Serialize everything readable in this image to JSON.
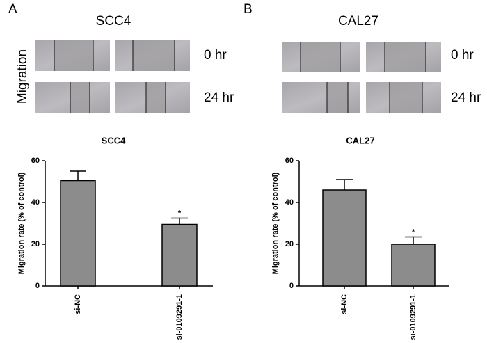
{
  "panels": [
    {
      "label": "A",
      "title": "SCC4",
      "row_label": "Migration",
      "times": [
        "0 hr",
        "24 hr"
      ]
    },
    {
      "label": "B",
      "title": "CAL27",
      "times": [
        "0 hr",
        "24 hr"
      ]
    }
  ],
  "chart_data": [
    {
      "type": "bar",
      "title": "SCC4",
      "ylabel": "Migration rate (% of control)",
      "categories": [
        "si-NC",
        "si-0109291-1"
      ],
      "values": [
        50.5,
        29.5
      ],
      "errors": [
        4.5,
        3
      ],
      "significance": [
        null,
        "*"
      ],
      "color": "#8c8c8c",
      "ylim": [
        0,
        60
      ],
      "yticks": [
        0,
        20,
        40,
        60
      ]
    },
    {
      "type": "bar",
      "title": "CAL27",
      "ylabel": "Migration rate (% of control)",
      "categories": [
        "si-NC",
        "si-0109291-1"
      ],
      "values": [
        46,
        20
      ],
      "errors": [
        5,
        3.5
      ],
      "significance": [
        null,
        "*"
      ],
      "color": "#8c8c8c",
      "ylim": [
        0,
        60
      ],
      "yticks": [
        0,
        20,
        40,
        60
      ]
    }
  ]
}
